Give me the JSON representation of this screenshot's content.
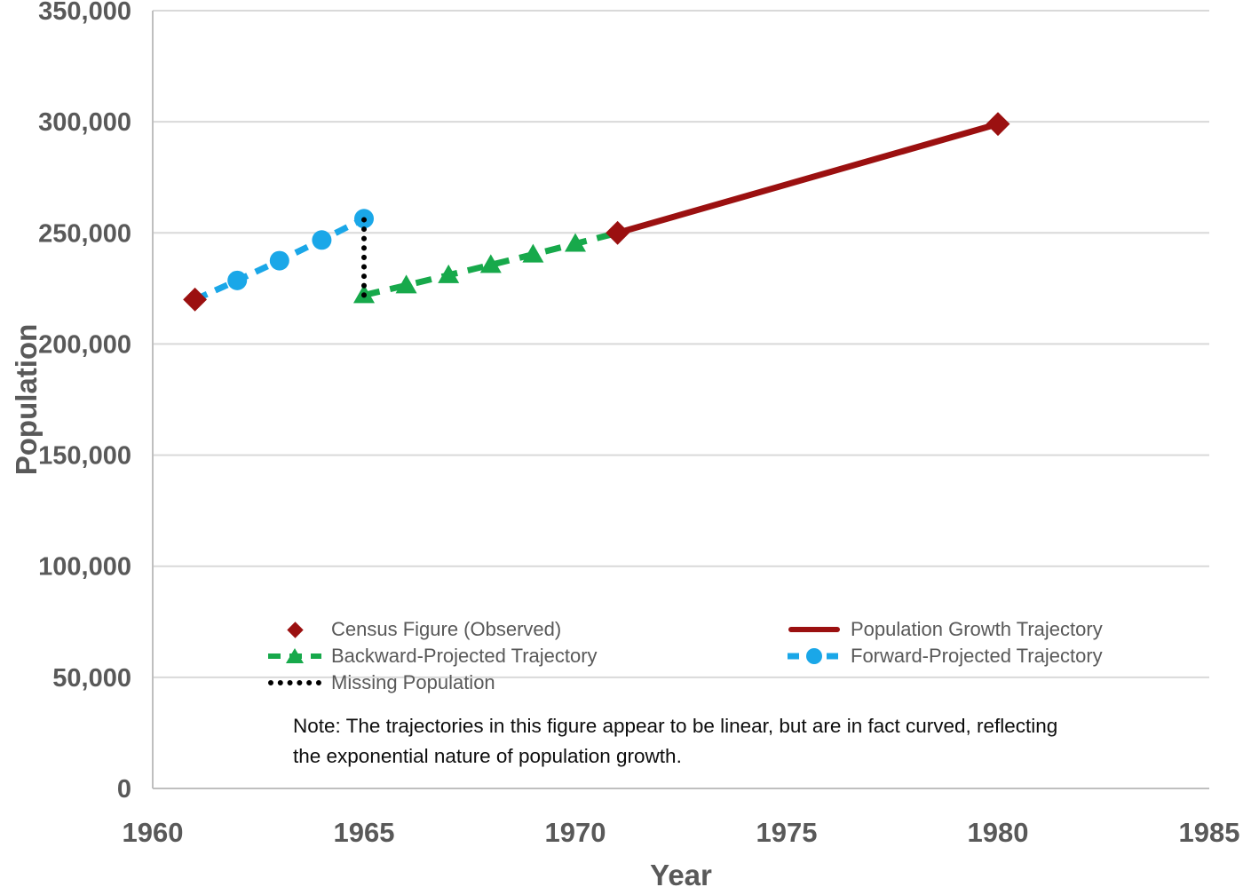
{
  "chart_data": {
    "type": "line",
    "title": "",
    "xlabel": "Year",
    "ylabel": "Population",
    "xlim": [
      1960,
      1985
    ],
    "ylim": [
      0,
      350000
    ],
    "grid": true,
    "grid_color": "#d9d9d9",
    "axis_color": "#bfbfbf",
    "tick_color": "#595959",
    "x_ticks": [
      {
        "value": 1960,
        "label": "1960"
      },
      {
        "value": 1965,
        "label": "1965"
      },
      {
        "value": 1970,
        "label": "1970"
      },
      {
        "value": 1975,
        "label": "1975"
      },
      {
        "value": 1980,
        "label": "1980"
      },
      {
        "value": 1985,
        "label": "1985"
      }
    ],
    "y_ticks": [
      {
        "value": 0,
        "label": "0"
      },
      {
        "value": 50000,
        "label": "50,000"
      },
      {
        "value": 100000,
        "label": "100,000"
      },
      {
        "value": 150000,
        "label": "150,000"
      },
      {
        "value": 200000,
        "label": "200,000"
      },
      {
        "value": 250000,
        "label": "250,000"
      },
      {
        "value": 300000,
        "label": "300,000"
      },
      {
        "value": 350000,
        "label": "350,000"
      }
    ],
    "series": [
      {
        "name": "Forward-Projected Trajectory",
        "color": "#1aa7e8",
        "marker": "circle",
        "line": "dashed",
        "dash": "15 10",
        "points": [
          [
            1961,
            220000
          ],
          [
            1962,
            228600
          ],
          [
            1963,
            237500
          ],
          [
            1964,
            246800
          ],
          [
            1965,
            256400
          ]
        ],
        "marker_years": [
          1962,
          1963,
          1964,
          1965
        ]
      },
      {
        "name": "Backward-Projected Trajectory",
        "color": "#17a94b",
        "marker": "triangle",
        "line": "dashed",
        "dash": "18 12",
        "points": [
          [
            1965,
            222000
          ],
          [
            1966,
            226400
          ],
          [
            1967,
            231000
          ],
          [
            1968,
            235600
          ],
          [
            1969,
            240300
          ],
          [
            1970,
            245100
          ],
          [
            1971,
            250000
          ]
        ],
        "marker_years": [
          1965,
          1966,
          1967,
          1968,
          1969,
          1970
        ]
      },
      {
        "name": "Missing Population",
        "color": "#000000",
        "marker": "none",
        "line": "dotted",
        "points": [
          [
            1965,
            222000
          ],
          [
            1965,
            256400
          ]
        ]
      },
      {
        "name": "Population Growth Trajectory",
        "color": "#9b1010",
        "marker": "none",
        "line": "solid",
        "points": [
          [
            1971,
            250000
          ],
          [
            1980,
            299000
          ]
        ]
      },
      {
        "name": "Census Figure (Observed)",
        "color": "#9b1010",
        "marker": "diamond",
        "line": "none",
        "points": [
          [
            1961,
            220000
          ],
          [
            1971,
            250000
          ],
          [
            1980,
            299000
          ]
        ]
      }
    ],
    "legend_position": "inside-bottom-center"
  },
  "legend": {
    "items": [
      {
        "label": "Census Figure (Observed)",
        "marker": "dark-red-diamond",
        "color": "#9b1010"
      },
      {
        "label": "Population Growth Trajectory",
        "marker": "dark-red-solid-line",
        "color": "#9b1010"
      },
      {
        "label": "Backward-Projected Trajectory",
        "marker": "green-dashed-line-triangle",
        "color": "#17a94b"
      },
      {
        "label": "Forward-Projected Trajectory",
        "marker": "blue-dashed-line-circle",
        "color": "#1aa7e8"
      },
      {
        "label": "Missing Population",
        "marker": "black-dotted-line",
        "color": "#000000"
      }
    ]
  },
  "note": {
    "line1": "Note: The trajectories in this figure appear to be linear, but are in fact curved, reflecting",
    "line2": "the exponential nature of population growth."
  }
}
